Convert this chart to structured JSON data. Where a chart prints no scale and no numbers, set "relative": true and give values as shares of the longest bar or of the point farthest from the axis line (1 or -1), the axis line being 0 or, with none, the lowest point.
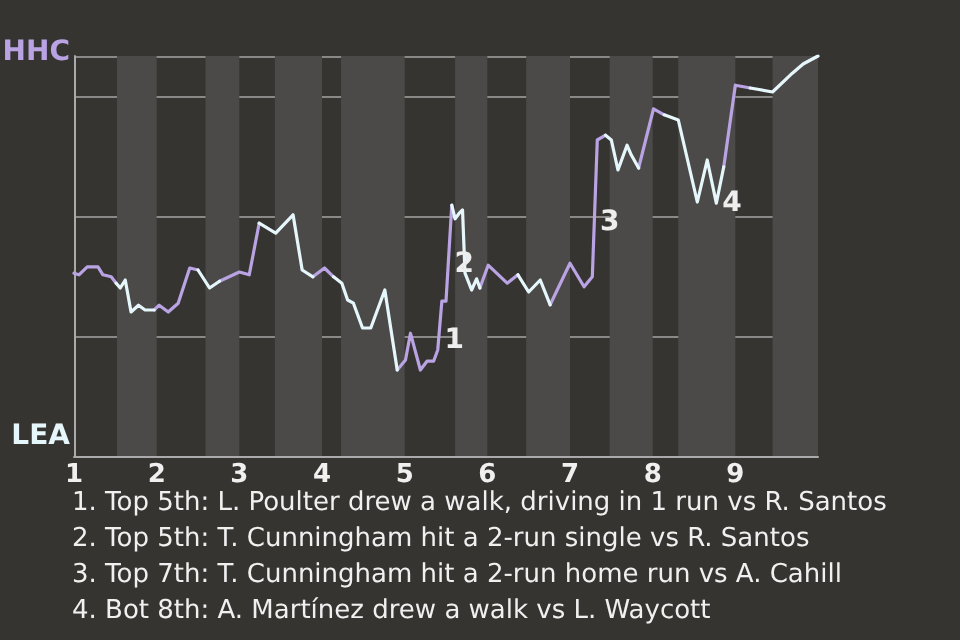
{
  "chart_data": {
    "type": "line",
    "x": [
      1.0,
      1.06,
      1.16,
      1.29,
      1.35,
      1.45,
      1.51,
      1.56,
      1.62,
      1.69,
      1.78,
      1.86,
      1.97,
      2.03,
      2.14,
      2.26,
      2.4,
      2.5,
      2.64,
      2.76,
      3.0,
      3.12,
      3.24,
      3.44,
      3.65,
      3.76,
      3.89,
      4.03,
      4.14,
      4.24,
      4.31,
      4.38,
      4.49,
      4.59,
      4.76,
      4.91,
      5.01,
      5.07,
      5.19,
      5.27,
      5.35,
      5.4,
      5.45,
      5.5,
      5.57,
      5.61,
      5.66,
      5.7,
      5.73,
      5.81,
      5.87,
      5.91,
      6.01,
      6.24,
      6.37,
      6.5,
      6.64,
      6.76,
      7.0,
      7.17,
      7.27,
      7.33,
      7.43,
      7.5,
      7.58,
      7.69,
      7.74,
      7.83,
      8.01,
      8.14,
      8.31,
      8.54,
      8.66,
      8.77,
      8.86,
      9.0,
      9.18,
      9.45,
      9.69,
      9.82,
      10.0
    ],
    "relative": true,
    "series": [
      {
        "color": "#b9a3e3",
        "values": [
          0.457,
          0.453,
          0.473,
          0.473,
          0.453,
          0.448,
          0.432,
          null,
          null,
          null,
          null,
          null,
          0.365,
          0.377,
          0.36,
          0.382,
          0.47,
          0.465,
          null,
          0.437,
          0.46,
          0.453,
          0.582,
          null,
          null,
          null,
          0.448,
          0.47,
          0.448,
          null,
          null,
          null,
          null,
          null,
          null,
          0.215,
          0.24,
          0.307,
          0.215,
          0.237,
          0.237,
          0.265,
          0.387,
          0.387,
          0.627,
          null,
          null,
          null,
          null,
          null,
          null,
          0.42,
          0.477,
          0.432,
          0.453,
          null,
          null,
          0.378,
          0.482,
          0.423,
          0.448,
          0.79,
          0.802,
          null,
          null,
          null,
          null,
          0.72,
          0.868,
          0.853,
          null,
          null,
          null,
          null,
          0.723,
          0.927,
          0.92,
          null,
          null,
          null,
          null
        ]
      },
      {
        "color": "#e6f7fb",
        "values": [
          null,
          null,
          null,
          null,
          null,
          null,
          0.432,
          0.42,
          0.44,
          0.36,
          0.377,
          0.365,
          0.365,
          null,
          null,
          null,
          null,
          0.465,
          0.42,
          0.437,
          null,
          null,
          0.582,
          0.557,
          0.603,
          0.465,
          0.448,
          null,
          0.448,
          0.432,
          0.39,
          0.382,
          0.32,
          0.32,
          0.415,
          0.215,
          null,
          null,
          null,
          null,
          null,
          null,
          null,
          null,
          0.627,
          0.593,
          0.607,
          0.615,
          0.457,
          0.415,
          0.443,
          0.42,
          null,
          null,
          0.453,
          0.41,
          0.44,
          0.378,
          null,
          null,
          null,
          null,
          0.802,
          0.79,
          0.715,
          0.777,
          0.753,
          0.72,
          null,
          0.853,
          0.84,
          0.635,
          0.74,
          0.632,
          0.723,
          null,
          0.92,
          0.91,
          0.957,
          0.98,
          1.0
        ]
      }
    ],
    "xlim": [
      1,
      10
    ],
    "xticks": [
      1,
      2,
      3,
      4,
      5,
      6,
      7,
      8,
      9
    ],
    "grid": "y",
    "marker": "none",
    "line_style": "solid",
    "bands": [
      {
        "axis": "x",
        "from": 1.52,
        "to": 2.0,
        "color": "#4b4a48"
      },
      {
        "axis": "x",
        "from": 2.59,
        "to": 3.0,
        "color": "#4b4a48"
      },
      {
        "axis": "x",
        "from": 3.43,
        "to": 4.0,
        "color": "#4b4a48"
      },
      {
        "axis": "x",
        "from": 4.23,
        "to": 5.0,
        "color": "#4b4a48"
      },
      {
        "axis": "x",
        "from": 5.61,
        "to": 6.0,
        "color": "#4b4a48"
      },
      {
        "axis": "x",
        "from": 6.47,
        "to": 7.0,
        "color": "#4b4a48"
      },
      {
        "axis": "x",
        "from": 7.48,
        "to": 8.0,
        "color": "#4b4a48"
      },
      {
        "axis": "x",
        "from": 8.31,
        "to": 9.0,
        "color": "#4b4a48"
      },
      {
        "axis": "x",
        "from": 9.45,
        "to": 10.0,
        "color": "#4b4a48"
      }
    ],
    "annotations": [
      "HHC",
      "LEA",
      {
        "text": "1",
        "x": 5.41,
        "y": 0.29
      },
      {
        "text": "2",
        "x": 5.53,
        "y": 0.48
      },
      {
        "text": "3",
        "x": 7.29,
        "y": 0.585
      },
      {
        "text": "4",
        "x": 8.77,
        "y": 0.632
      },
      "1. Top 5th: L. Poulter drew a walk, driving in 1 run vs R. Santos",
      "2. Top 5th: T. Cunningham hit a 2-run single vs R. Santos",
      "3. Top 7th: T. Cunningham hit a 2-run home run vs A. Cahill",
      "4. Bot 8th: A. Martínez drew a walk vs L. Waycott"
    ]
  }
}
